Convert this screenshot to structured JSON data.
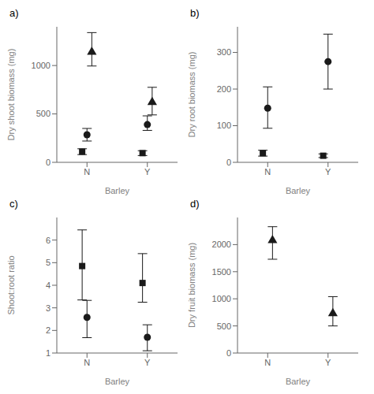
{
  "chart_data": [
    {
      "type": "scatter",
      "title": "a)",
      "x_label": "Barley",
      "y_label": "Dry shoot biomass (mg)",
      "categories": [
        "N",
        "Y"
      ],
      "ylim": [
        0,
        1400
      ],
      "yticks": [
        0,
        500,
        1000
      ],
      "grid": false,
      "color": "#1a1a1a",
      "series": [
        {
          "marker": "square",
          "values": [
            110,
            95
          ],
          "yerr_lo": [
            30,
            25
          ],
          "yerr_hi": [
            30,
            25
          ]
        },
        {
          "marker": "circle",
          "values": [
            285,
            390
          ],
          "yerr_lo": [
            65,
            60
          ],
          "yerr_hi": [
            65,
            90
          ]
        },
        {
          "marker": "triangle",
          "values": [
            1140,
            620
          ],
          "yerr_lo": [
            145,
            130
          ],
          "yerr_hi": [
            200,
            155
          ]
        }
      ]
    },
    {
      "type": "scatter",
      "title": "b)",
      "x_label": "Barley",
      "y_label": "Dry root biomass (mg)",
      "categories": [
        "N",
        "Y"
      ],
      "ylim": [
        0,
        370
      ],
      "yticks": [
        0,
        100,
        200,
        300
      ],
      "grid": false,
      "color": "#1a1a1a",
      "series": [
        {
          "marker": "square",
          "values": [
            25,
            18
          ],
          "yerr_lo": [
            8,
            5
          ],
          "yerr_hi": [
            8,
            5
          ]
        },
        {
          "marker": "circle",
          "values": [
            148,
            275
          ],
          "yerr_lo": [
            55,
            75
          ],
          "yerr_hi": [
            58,
            75
          ]
        }
      ]
    },
    {
      "type": "scatter",
      "title": "c)",
      "x_label": "Barley",
      "y_label": "Shoot:root ratio",
      "categories": [
        "N",
        "Y"
      ],
      "ylim": [
        1,
        7
      ],
      "yticks": [
        1,
        2,
        3,
        4,
        5,
        6
      ],
      "grid": false,
      "color": "#1a1a1a",
      "series": [
        {
          "marker": "square",
          "values": [
            4.85,
            4.1
          ],
          "yerr_lo": [
            1.5,
            0.85
          ],
          "yerr_hi": [
            1.6,
            1.3
          ]
        },
        {
          "marker": "circle",
          "values": [
            2.58,
            1.7
          ],
          "yerr_lo": [
            0.9,
            0.6
          ],
          "yerr_hi": [
            0.75,
            0.55
          ]
        }
      ]
    },
    {
      "type": "scatter",
      "title": "d)",
      "x_label": "Barley",
      "y_label": "Dry fruit biomass (mg)",
      "categories": [
        "N",
        "Y"
      ],
      "ylim": [
        0,
        2500
      ],
      "yticks": [
        0,
        500,
        1000,
        1500,
        2000
      ],
      "grid": false,
      "color": "#1a1a1a",
      "series": [
        {
          "marker": "triangle",
          "values": [
            2080,
            730
          ],
          "yerr_lo": [
            350,
            230
          ],
          "yerr_hi": [
            250,
            310
          ]
        }
      ]
    }
  ]
}
